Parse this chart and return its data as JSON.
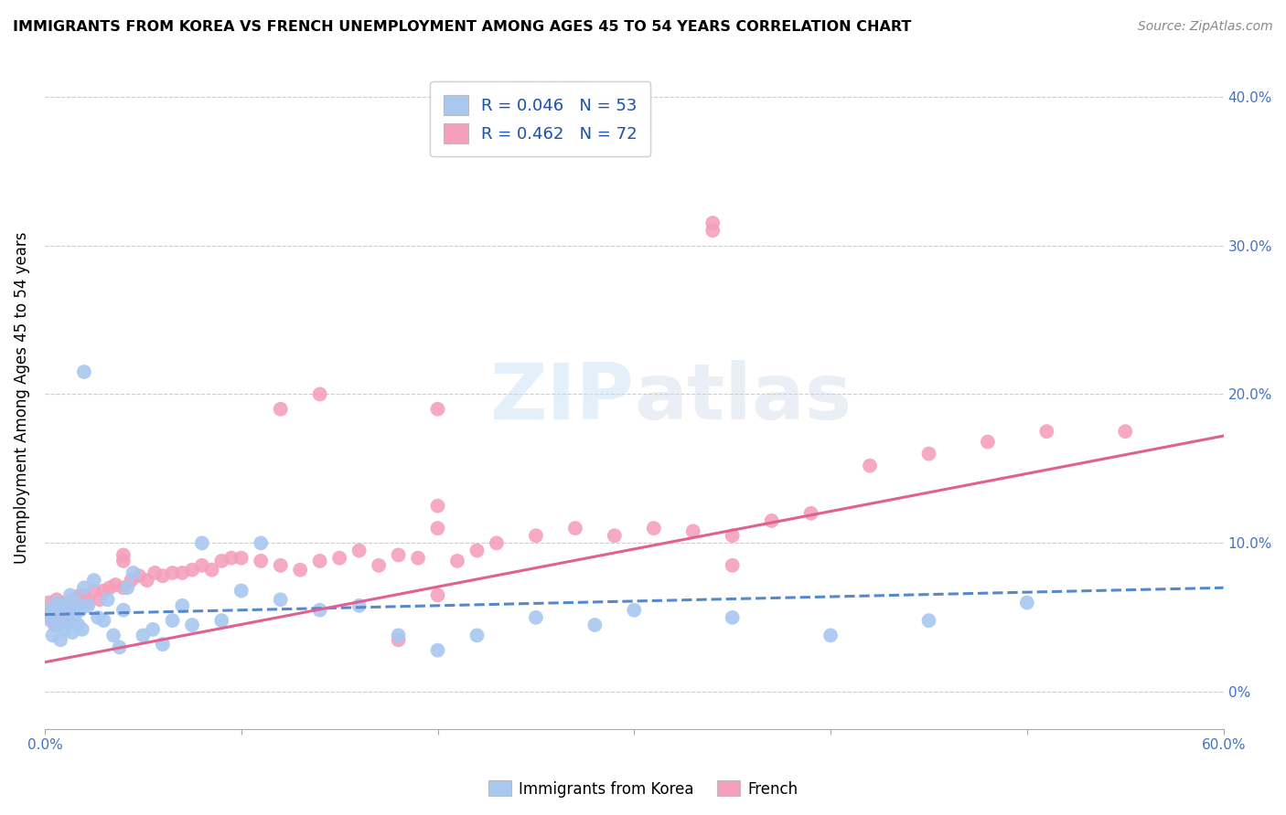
{
  "title": "IMMIGRANTS FROM KOREA VS FRENCH UNEMPLOYMENT AMONG AGES 45 TO 54 YEARS CORRELATION CHART",
  "source": "Source: ZipAtlas.com",
  "ylabel": "Unemployment Among Ages 45 to 54 years",
  "legend_labels": [
    "Immigrants from Korea",
    "French"
  ],
  "korea_R": "0.046",
  "korea_N": "53",
  "french_R": "0.462",
  "french_N": "72",
  "korea_color": "#a8c8f0",
  "korea_line_color": "#5588cc",
  "french_color": "#f4a0bc",
  "french_line_color": "#e06090",
  "xlim": [
    0.0,
    0.6
  ],
  "ylim": [
    -0.025,
    0.42
  ],
  "yticks": [
    0.0,
    0.1,
    0.2,
    0.3,
    0.4
  ],
  "ytick_labels": [
    "0%",
    "10.0%",
    "20.0%",
    "30.0%",
    "40.0%"
  ],
  "xtick_labels": [
    "0.0%",
    "60.0%"
  ],
  "korea_scatter_x": [
    0.002,
    0.003,
    0.004,
    0.005,
    0.006,
    0.007,
    0.008,
    0.009,
    0.01,
    0.011,
    0.012,
    0.013,
    0.014,
    0.015,
    0.016,
    0.017,
    0.018,
    0.019,
    0.02,
    0.022,
    0.025,
    0.027,
    0.03,
    0.032,
    0.035,
    0.038,
    0.04,
    0.042,
    0.045,
    0.05,
    0.055,
    0.06,
    0.065,
    0.07,
    0.075,
    0.08,
    0.09,
    0.1,
    0.11,
    0.12,
    0.14,
    0.16,
    0.18,
    0.2,
    0.22,
    0.25,
    0.28,
    0.3,
    0.35,
    0.4,
    0.45,
    0.5,
    0.02
  ],
  "korea_scatter_y": [
    0.055,
    0.048,
    0.038,
    0.052,
    0.06,
    0.045,
    0.035,
    0.058,
    0.042,
    0.055,
    0.048,
    0.065,
    0.04,
    0.05,
    0.06,
    0.045,
    0.055,
    0.042,
    0.07,
    0.058,
    0.075,
    0.05,
    0.048,
    0.062,
    0.038,
    0.03,
    0.055,
    0.07,
    0.08,
    0.038,
    0.042,
    0.032,
    0.048,
    0.058,
    0.045,
    0.1,
    0.048,
    0.068,
    0.1,
    0.062,
    0.055,
    0.058,
    0.038,
    0.028,
    0.038,
    0.05,
    0.045,
    0.055,
    0.05,
    0.038,
    0.048,
    0.06,
    0.215
  ],
  "french_scatter_x": [
    0.002,
    0.003,
    0.004,
    0.005,
    0.006,
    0.007,
    0.008,
    0.009,
    0.01,
    0.011,
    0.012,
    0.014,
    0.016,
    0.018,
    0.02,
    0.022,
    0.025,
    0.028,
    0.03,
    0.033,
    0.036,
    0.04,
    0.044,
    0.048,
    0.052,
    0.056,
    0.06,
    0.065,
    0.07,
    0.075,
    0.08,
    0.085,
    0.09,
    0.095,
    0.1,
    0.11,
    0.12,
    0.13,
    0.14,
    0.15,
    0.16,
    0.17,
    0.18,
    0.19,
    0.2,
    0.21,
    0.22,
    0.23,
    0.25,
    0.27,
    0.29,
    0.31,
    0.33,
    0.35,
    0.37,
    0.39,
    0.42,
    0.45,
    0.48,
    0.51,
    0.34,
    0.34,
    0.12,
    0.14,
    0.2,
    0.2,
    0.2,
    0.18,
    0.04,
    0.04,
    0.35,
    0.55
  ],
  "french_scatter_y": [
    0.06,
    0.05,
    0.055,
    0.045,
    0.062,
    0.048,
    0.06,
    0.052,
    0.058,
    0.048,
    0.055,
    0.062,
    0.058,
    0.065,
    0.065,
    0.06,
    0.068,
    0.062,
    0.068,
    0.07,
    0.072,
    0.07,
    0.075,
    0.078,
    0.075,
    0.08,
    0.078,
    0.08,
    0.08,
    0.082,
    0.085,
    0.082,
    0.088,
    0.09,
    0.09,
    0.088,
    0.085,
    0.082,
    0.088,
    0.09,
    0.095,
    0.085,
    0.092,
    0.09,
    0.11,
    0.088,
    0.095,
    0.1,
    0.105,
    0.11,
    0.105,
    0.11,
    0.108,
    0.105,
    0.115,
    0.12,
    0.152,
    0.16,
    0.168,
    0.175,
    0.31,
    0.315,
    0.19,
    0.2,
    0.19,
    0.125,
    0.065,
    0.035,
    0.088,
    0.092,
    0.085,
    0.175
  ],
  "korea_trend_x": [
    0.0,
    0.6
  ],
  "korea_trend_y": [
    0.052,
    0.07
  ],
  "french_trend_x": [
    0.0,
    0.6
  ],
  "french_trend_y": [
    0.02,
    0.172
  ]
}
